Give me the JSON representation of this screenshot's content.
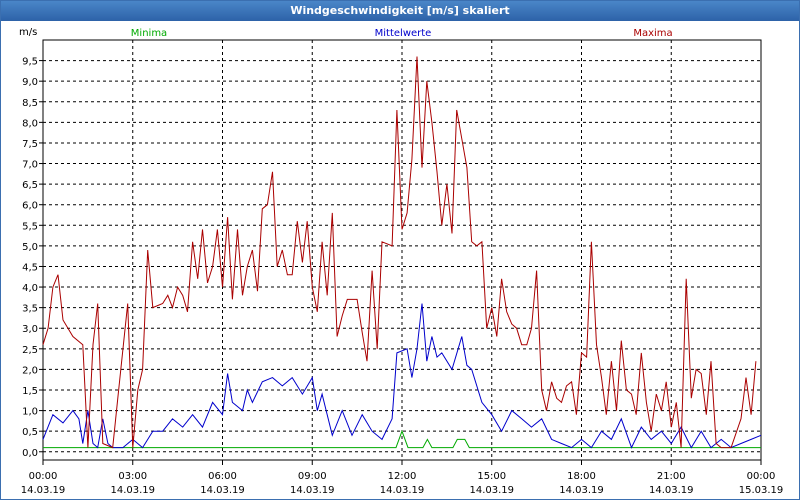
{
  "window": {
    "title": "Windgeschwindigkeit [m/s] skaliert"
  },
  "chart_data": {
    "type": "line",
    "title": "Windgeschwindigkeit [m/s] skaliert",
    "ylabel": "m/s",
    "ylim": [
      -0.2,
      10.0
    ],
    "y_ticks": [
      "0,0",
      "0,5",
      "1,0",
      "1,5",
      "2,0",
      "2,5",
      "3,0",
      "3,5",
      "4,0",
      "4,5",
      "5,0",
      "5,5",
      "6,0",
      "6,5",
      "7,0",
      "7,5",
      "8,0",
      "8,5",
      "9,0",
      "9,5"
    ],
    "x_ticks": [
      {
        "time": "00:00",
        "date": "14.03.19"
      },
      {
        "time": "03:00",
        "date": "14.03.19"
      },
      {
        "time": "06:00",
        "date": "14.03.19"
      },
      {
        "time": "09:00",
        "date": "14.03.19"
      },
      {
        "time": "12:00",
        "date": "14.03.19"
      },
      {
        "time": "15:00",
        "date": "14.03.19"
      },
      {
        "time": "18:00",
        "date": "14.03.19"
      },
      {
        "time": "21:00",
        "date": "14.03.19"
      },
      {
        "time": "00:00",
        "date": "15.03.19"
      }
    ],
    "grid": true,
    "legend_placement": "top",
    "series": [
      {
        "name": "Minima",
        "color": "#00aa00",
        "points": [
          [
            0,
            0.1
          ],
          [
            11.8,
            0.1
          ],
          [
            12.0,
            0.5
          ],
          [
            12.2,
            0.1
          ],
          [
            12.7,
            0.1
          ],
          [
            12.85,
            0.3
          ],
          [
            13.0,
            0.1
          ],
          [
            13.7,
            0.1
          ],
          [
            13.85,
            0.3
          ],
          [
            14.1,
            0.3
          ],
          [
            14.25,
            0.1
          ],
          [
            24,
            0.1
          ]
        ]
      },
      {
        "name": "Mittelwerte",
        "color": "#0000cc",
        "points": [
          [
            0,
            0.3
          ],
          [
            0.33,
            0.9
          ],
          [
            0.67,
            0.7
          ],
          [
            1.0,
            1.0
          ],
          [
            1.2,
            0.8
          ],
          [
            1.33,
            0.2
          ],
          [
            1.5,
            1.0
          ],
          [
            1.67,
            0.2
          ],
          [
            1.83,
            0.1
          ],
          [
            2.0,
            0.8
          ],
          [
            2.17,
            0.2
          ],
          [
            2.33,
            0.1
          ],
          [
            2.67,
            0.1
          ],
          [
            3.0,
            0.3
          ],
          [
            3.33,
            0.1
          ],
          [
            3.67,
            0.5
          ],
          [
            4.0,
            0.5
          ],
          [
            4.33,
            0.8
          ],
          [
            4.67,
            0.6
          ],
          [
            5.0,
            0.9
          ],
          [
            5.33,
            0.6
          ],
          [
            5.67,
            1.2
          ],
          [
            6.0,
            0.9
          ],
          [
            6.17,
            1.9
          ],
          [
            6.33,
            1.2
          ],
          [
            6.67,
            1.0
          ],
          [
            6.83,
            1.5
          ],
          [
            7.0,
            1.2
          ],
          [
            7.33,
            1.7
          ],
          [
            7.67,
            1.8
          ],
          [
            8.0,
            1.6
          ],
          [
            8.33,
            1.8
          ],
          [
            8.67,
            1.4
          ],
          [
            9.0,
            1.8
          ],
          [
            9.17,
            1.0
          ],
          [
            9.33,
            1.4
          ],
          [
            9.5,
            0.9
          ],
          [
            9.67,
            0.4
          ],
          [
            10.0,
            1.0
          ],
          [
            10.33,
            0.4
          ],
          [
            10.67,
            0.9
          ],
          [
            11.0,
            0.5
          ],
          [
            11.33,
            0.3
          ],
          [
            11.67,
            0.8
          ],
          [
            11.83,
            2.4
          ],
          [
            12.17,
            2.5
          ],
          [
            12.33,
            1.8
          ],
          [
            12.5,
            2.5
          ],
          [
            12.67,
            3.6
          ],
          [
            12.83,
            2.2
          ],
          [
            13.0,
            2.8
          ],
          [
            13.17,
            2.3
          ],
          [
            13.33,
            2.4
          ],
          [
            13.67,
            2.0
          ],
          [
            14.0,
            2.8
          ],
          [
            14.17,
            2.1
          ],
          [
            14.33,
            2.0
          ],
          [
            14.67,
            1.2
          ],
          [
            15.0,
            0.9
          ],
          [
            15.33,
            0.5
          ],
          [
            15.67,
            1.0
          ],
          [
            16.0,
            0.8
          ],
          [
            16.33,
            0.6
          ],
          [
            16.67,
            0.8
          ],
          [
            17.0,
            0.3
          ],
          [
            17.33,
            0.2
          ],
          [
            17.67,
            0.1
          ],
          [
            18.0,
            0.3
          ],
          [
            18.33,
            0.1
          ],
          [
            18.67,
            0.5
          ],
          [
            19.0,
            0.3
          ],
          [
            19.33,
            0.8
          ],
          [
            19.67,
            0.1
          ],
          [
            20.0,
            0.6
          ],
          [
            20.33,
            0.3
          ],
          [
            20.67,
            0.5
          ],
          [
            21.0,
            0.2
          ],
          [
            21.33,
            0.6
          ],
          [
            21.67,
            0.1
          ],
          [
            22.0,
            0.5
          ],
          [
            22.33,
            0.1
          ],
          [
            22.67,
            0.3
          ],
          [
            23.0,
            0.1
          ],
          [
            23.33,
            0.2
          ],
          [
            23.67,
            0.3
          ],
          [
            24.0,
            0.4
          ]
        ]
      },
      {
        "name": "Maxima",
        "color": "#aa0000",
        "points": [
          [
            0,
            2.6
          ],
          [
            0.17,
            3.0
          ],
          [
            0.33,
            4.0
          ],
          [
            0.5,
            4.3
          ],
          [
            0.67,
            3.2
          ],
          [
            1.0,
            2.8
          ],
          [
            1.33,
            2.6
          ],
          [
            1.5,
            0.1
          ],
          [
            1.67,
            2.6
          ],
          [
            1.83,
            3.6
          ],
          [
            2.0,
            0.2
          ],
          [
            2.33,
            0.1
          ],
          [
            2.5,
            1.3
          ],
          [
            2.83,
            3.6
          ],
          [
            3.0,
            0.1
          ],
          [
            3.17,
            1.5
          ],
          [
            3.33,
            2.0
          ],
          [
            3.5,
            4.9
          ],
          [
            3.67,
            3.5
          ],
          [
            4.0,
            3.6
          ],
          [
            4.17,
            3.8
          ],
          [
            4.33,
            3.5
          ],
          [
            4.5,
            4.0
          ],
          [
            4.67,
            3.8
          ],
          [
            4.83,
            3.4
          ],
          [
            5.0,
            5.1
          ],
          [
            5.17,
            4.2
          ],
          [
            5.33,
            5.4
          ],
          [
            5.5,
            4.1
          ],
          [
            5.67,
            4.5
          ],
          [
            5.83,
            5.4
          ],
          [
            6.0,
            4.0
          ],
          [
            6.17,
            5.7
          ],
          [
            6.33,
            3.7
          ],
          [
            6.5,
            5.4
          ],
          [
            6.67,
            3.8
          ],
          [
            6.83,
            4.5
          ],
          [
            7.0,
            4.9
          ],
          [
            7.17,
            3.9
          ],
          [
            7.33,
            5.9
          ],
          [
            7.5,
            6.0
          ],
          [
            7.67,
            6.8
          ],
          [
            7.83,
            4.5
          ],
          [
            8.0,
            4.9
          ],
          [
            8.17,
            4.3
          ],
          [
            8.33,
            4.3
          ],
          [
            8.5,
            5.6
          ],
          [
            8.67,
            4.6
          ],
          [
            8.83,
            5.6
          ],
          [
            9.0,
            4.0
          ],
          [
            9.17,
            3.4
          ],
          [
            9.33,
            5.1
          ],
          [
            9.5,
            3.8
          ],
          [
            9.67,
            5.8
          ],
          [
            9.83,
            2.8
          ],
          [
            10.0,
            3.3
          ],
          [
            10.17,
            3.7
          ],
          [
            10.5,
            3.7
          ],
          [
            10.67,
            2.9
          ],
          [
            10.83,
            2.2
          ],
          [
            11.0,
            4.4
          ],
          [
            11.17,
            2.5
          ],
          [
            11.33,
            5.1
          ],
          [
            11.67,
            5.0
          ],
          [
            11.83,
            8.3
          ],
          [
            12.0,
            5.4
          ],
          [
            12.17,
            5.8
          ],
          [
            12.33,
            7.1
          ],
          [
            12.5,
            9.6
          ],
          [
            12.67,
            6.9
          ],
          [
            12.83,
            9.0
          ],
          [
            13.0,
            8.0
          ],
          [
            13.17,
            6.8
          ],
          [
            13.33,
            5.5
          ],
          [
            13.5,
            6.5
          ],
          [
            13.67,
            5.3
          ],
          [
            13.83,
            8.3
          ],
          [
            14.0,
            7.6
          ],
          [
            14.17,
            6.9
          ],
          [
            14.33,
            5.1
          ],
          [
            14.5,
            5.0
          ],
          [
            14.67,
            5.1
          ],
          [
            14.83,
            3.0
          ],
          [
            15.0,
            3.5
          ],
          [
            15.17,
            2.8
          ],
          [
            15.33,
            4.2
          ],
          [
            15.5,
            3.4
          ],
          [
            15.67,
            3.1
          ],
          [
            15.83,
            3.0
          ],
          [
            16.0,
            2.6
          ],
          [
            16.17,
            2.6
          ],
          [
            16.33,
            3.0
          ],
          [
            16.5,
            4.4
          ],
          [
            16.67,
            1.5
          ],
          [
            16.83,
            1.0
          ],
          [
            17.0,
            1.7
          ],
          [
            17.17,
            1.3
          ],
          [
            17.33,
            1.2
          ],
          [
            17.5,
            1.6
          ],
          [
            17.67,
            1.7
          ],
          [
            17.83,
            0.9
          ],
          [
            18.0,
            2.4
          ],
          [
            18.17,
            2.3
          ],
          [
            18.33,
            5.1
          ],
          [
            18.5,
            2.6
          ],
          [
            18.67,
            1.8
          ],
          [
            18.83,
            0.9
          ],
          [
            19.0,
            2.2
          ],
          [
            19.17,
            1.0
          ],
          [
            19.33,
            2.7
          ],
          [
            19.5,
            1.5
          ],
          [
            19.67,
            1.4
          ],
          [
            19.83,
            0.9
          ],
          [
            20.0,
            2.4
          ],
          [
            20.17,
            1.2
          ],
          [
            20.33,
            0.5
          ],
          [
            20.5,
            1.4
          ],
          [
            20.67,
            1.0
          ],
          [
            20.83,
            1.7
          ],
          [
            21.0,
            0.6
          ],
          [
            21.17,
            1.2
          ],
          [
            21.33,
            0.1
          ],
          [
            21.5,
            4.2
          ],
          [
            21.67,
            1.3
          ],
          [
            21.83,
            2.0
          ],
          [
            22.0,
            1.9
          ],
          [
            22.17,
            0.9
          ],
          [
            22.33,
            2.2
          ],
          [
            22.5,
            0.2
          ],
          [
            22.67,
            0.1
          ],
          [
            23.0,
            0.1
          ],
          [
            23.33,
            0.8
          ],
          [
            23.5,
            1.8
          ],
          [
            23.67,
            0.9
          ],
          [
            23.83,
            2.2
          ]
        ]
      }
    ]
  }
}
